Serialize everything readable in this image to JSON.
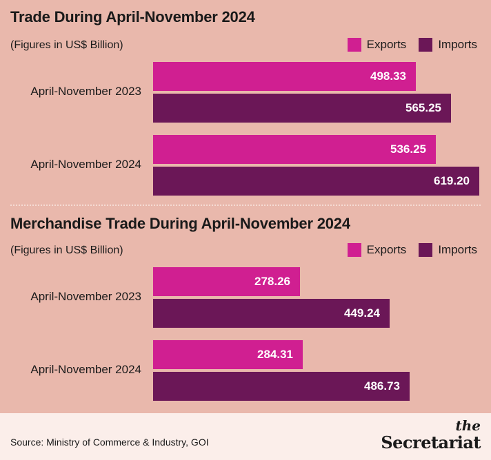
{
  "colors": {
    "exports": "#d01f91",
    "imports": "#6b1757",
    "background": "#e9b8ac",
    "footer_bg": "#fbeeea"
  },
  "chart_data": [
    {
      "type": "bar",
      "orientation": "horizontal",
      "title": "Trade During April-November 2024",
      "subtitle": "(Figures in US$ Billion)",
      "legend": "top-right",
      "categories": [
        "April-November 2023",
        "April-November 2024"
      ],
      "series": [
        {
          "name": "Exports",
          "values": [
            "498.33",
            "536.25"
          ]
        },
        {
          "name": "Imports",
          "values": [
            "565.25",
            "619.20"
          ]
        }
      ],
      "xlim": [
        0,
        700
      ],
      "grid": false
    },
    {
      "type": "bar",
      "orientation": "horizontal",
      "title": "Merchandise Trade During April-November 2024",
      "subtitle": "(Figures in US$ Billion)",
      "legend": "top-right",
      "categories": [
        "April-November 2023",
        "April-November 2024"
      ],
      "series": [
        {
          "name": "Exports",
          "values": [
            "278.26",
            "284.31"
          ]
        },
        {
          "name": "Imports",
          "values": [
            "449.24",
            "486.73"
          ]
        }
      ],
      "xlim": [
        0,
        700
      ],
      "grid": false
    }
  ],
  "footer": {
    "source": "Source: Ministry of Commerce & Industry, GOI",
    "logo_small": "the",
    "logo_big": "Secretariat"
  }
}
